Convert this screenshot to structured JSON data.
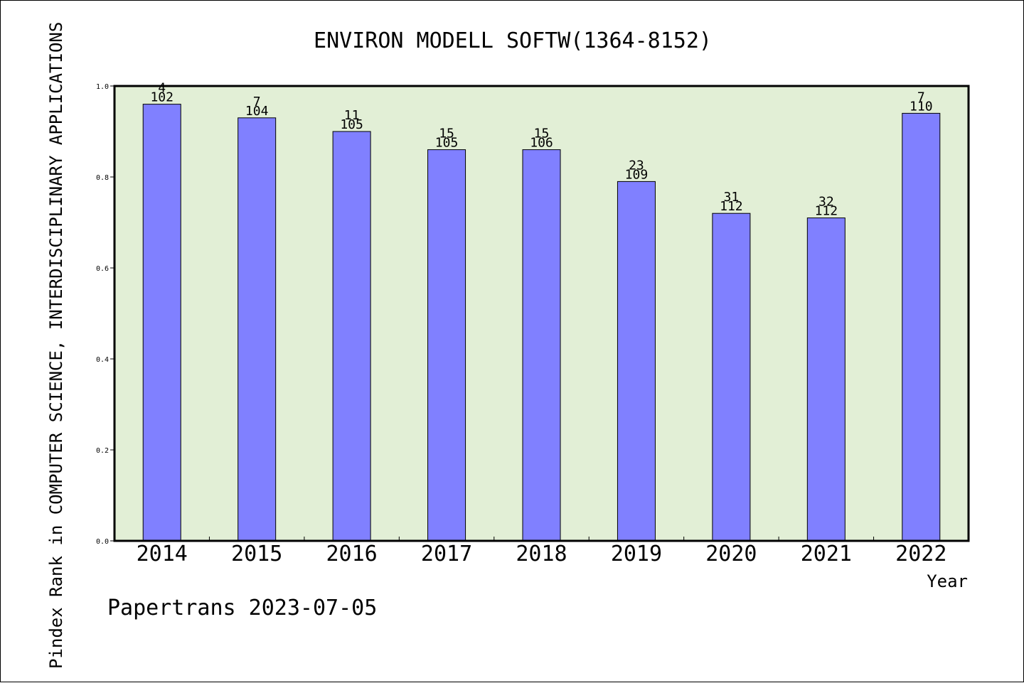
{
  "chart_data": {
    "type": "bar",
    "title": "ENVIRON MODELL SOFTW(1364-8152)",
    "xlabel": "Year",
    "ylabel": "Pindex Rank in COMPUTER SCIENCE, INTERDISCIPLINARY APPLICATIONS",
    "ylim": [
      0,
      1.0
    ],
    "yticks": [
      "0.0",
      "0.2",
      "0.4",
      "0.6",
      "0.8",
      "1.0"
    ],
    "categories": [
      "2014",
      "2015",
      "2016",
      "2017",
      "2018",
      "2019",
      "2020",
      "2021",
      "2022"
    ],
    "values": [
      0.96,
      0.93,
      0.9,
      0.86,
      0.86,
      0.79,
      0.72,
      0.71,
      0.94
    ],
    "rank_labels": [
      "4",
      "7",
      "11",
      "15",
      "15",
      "23",
      "31",
      "32",
      "7"
    ],
    "total_labels": [
      "102",
      "104",
      "105",
      "105",
      "106",
      "109",
      "112",
      "112",
      "110"
    ],
    "grid": false,
    "legend": "none",
    "colors": {
      "plot_background": "#e2efd6",
      "bar_fill": "#8080ff",
      "bar_stroke": "#000000"
    }
  },
  "footer": {
    "credit": "Papertrans 2023-07-05"
  }
}
